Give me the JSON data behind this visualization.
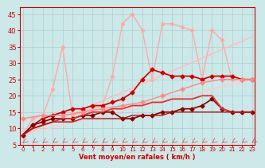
{
  "title": "",
  "xlabel": "Vent moyen/en rafales ( km/h )",
  "ylabel": "",
  "bg_color": "#cce8e8",
  "grid_color": "#aad0d0",
  "axis_color": "#cc0000",
  "xlabel_color": "#cc0000",
  "tick_color": "#cc0000",
  "x_ticks": [
    0,
    1,
    2,
    3,
    4,
    5,
    6,
    7,
    8,
    9,
    10,
    11,
    12,
    13,
    14,
    15,
    16,
    17,
    18,
    19,
    20,
    21,
    22,
    23
  ],
  "ylim": [
    5,
    47
  ],
  "xlim": [
    -0.3,
    23.3
  ],
  "yticks": [
    5,
    10,
    15,
    20,
    25,
    30,
    35,
    40,
    45
  ],
  "series": [
    {
      "comment": "light pink - high peaks, goes up to 45 at x=11, then 42 at x=14,15, then 41 at x=16, 40 at x=17, 40.5 at x=19",
      "x": [
        0,
        1,
        2,
        3,
        4,
        5,
        6,
        7,
        8,
        9,
        10,
        11,
        12,
        13,
        14,
        15,
        16,
        17,
        18,
        19,
        20,
        21,
        22,
        23
      ],
      "y": [
        8,
        13,
        14,
        22,
        35,
        14,
        15,
        16,
        17,
        26,
        42,
        45,
        40,
        25,
        42,
        42,
        41,
        40,
        25,
        40,
        37,
        25,
        25,
        25
      ],
      "color": "#ffaaaa",
      "lw": 1.0,
      "marker": "o",
      "ms": 2.5
    },
    {
      "comment": "medium pink - linear diagonal line from 8 to ~38",
      "x": [
        0,
        23
      ],
      "y": [
        8,
        38
      ],
      "color": "#ffbbbb",
      "lw": 1.0,
      "marker": null,
      "ms": 0
    },
    {
      "comment": "medium pink line2 - diagonal from 0,8 to 23,25",
      "x": [
        0,
        23
      ],
      "y": [
        8,
        25
      ],
      "color": "#ffcccc",
      "lw": 1.0,
      "marker": null,
      "ms": 0
    },
    {
      "comment": "red with diamond markers - wiggly line ~15-28",
      "x": [
        0,
        1,
        2,
        3,
        4,
        5,
        6,
        7,
        8,
        9,
        10,
        11,
        12,
        13,
        14,
        15,
        16,
        17,
        18,
        19,
        20,
        21,
        22,
        23
      ],
      "y": [
        8,
        11,
        13,
        14,
        15,
        16,
        16,
        17,
        17,
        18,
        19,
        21,
        25,
        28,
        27,
        26,
        26,
        26,
        25,
        26,
        26,
        26,
        25,
        25
      ],
      "color": "#cc0000",
      "lw": 1.2,
      "marker": "D",
      "ms": 2.5
    },
    {
      "comment": "dark red with diamond - nearly flat ~13-20",
      "x": [
        0,
        1,
        2,
        3,
        4,
        5,
        6,
        7,
        8,
        9,
        10,
        11,
        12,
        13,
        14,
        15,
        16,
        17,
        18,
        19,
        20,
        21,
        22,
        23
      ],
      "y": [
        8,
        11,
        12,
        13,
        13,
        13,
        14,
        14,
        15,
        15,
        13,
        13,
        14,
        14,
        15,
        15,
        16,
        16,
        17,
        19,
        16,
        15,
        15,
        15
      ],
      "color": "#880000",
      "lw": 1.2,
      "marker": "D",
      "ms": 2.5
    },
    {
      "comment": "red smooth increasing - up to ~20 at x=19",
      "x": [
        0,
        1,
        2,
        3,
        4,
        5,
        6,
        7,
        8,
        9,
        10,
        11,
        12,
        13,
        14,
        15,
        16,
        17,
        18,
        19,
        20,
        21,
        22,
        23
      ],
      "y": [
        8,
        10,
        11,
        12,
        13,
        13,
        14,
        15,
        15,
        16,
        16,
        17,
        17,
        18,
        18,
        19,
        19,
        19,
        20,
        20,
        16,
        15,
        15,
        15
      ],
      "color": "#dd3333",
      "lw": 1.3,
      "marker": null,
      "ms": 0
    },
    {
      "comment": "red nearly flat line - stays around 13-15",
      "x": [
        0,
        1,
        2,
        3,
        4,
        5,
        6,
        7,
        8,
        9,
        10,
        11,
        12,
        13,
        14,
        15,
        16,
        17,
        18,
        19,
        20,
        21,
        22,
        23
      ],
      "y": [
        8,
        10,
        11,
        12,
        12,
        12,
        13,
        13,
        13,
        13,
        13,
        14,
        14,
        14,
        14,
        15,
        15,
        15,
        15,
        15,
        15,
        15,
        15,
        15
      ],
      "color": "#aa1111",
      "lw": 1.0,
      "marker": null,
      "ms": 0
    },
    {
      "comment": "pink line with markers low - goes from 13 at 0 steadily up to ~25",
      "x": [
        0,
        2,
        4,
        6,
        8,
        10,
        12,
        14,
        16,
        18,
        20,
        22,
        23
      ],
      "y": [
        13,
        14,
        14,
        15,
        16,
        17,
        18,
        20,
        22,
        24,
        25,
        25,
        25
      ],
      "color": "#ff8888",
      "lw": 1.0,
      "marker": "D",
      "ms": 2.5
    }
  ],
  "wind_arrow_color": "#cc4444"
}
